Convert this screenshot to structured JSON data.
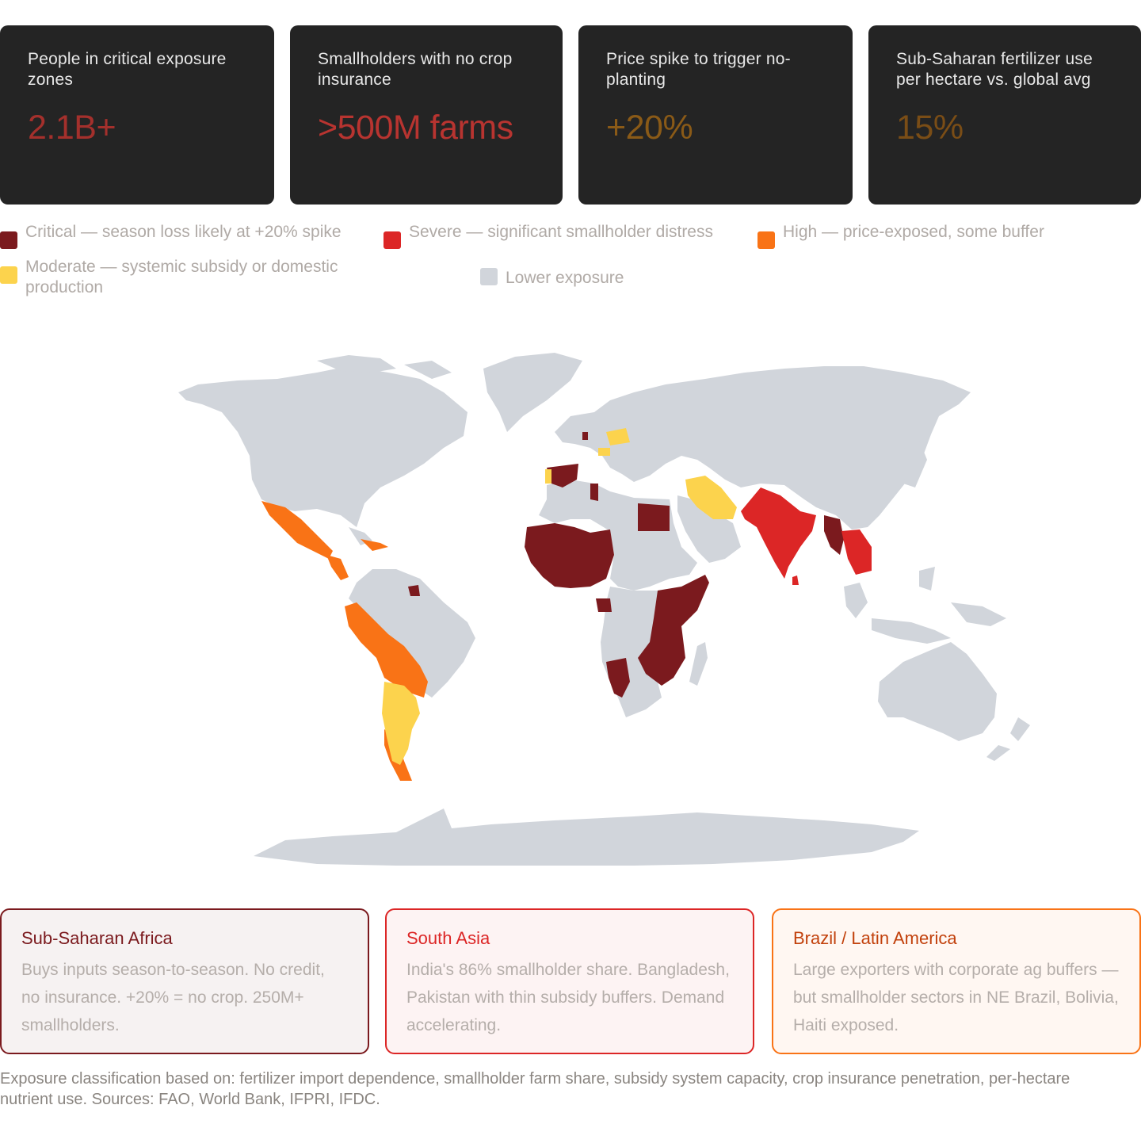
{
  "stats": [
    {
      "label": "People in critical exposure zones",
      "value": "2.1B+",
      "color": "#a4302c"
    },
    {
      "label": "Smallholders with no crop insurance",
      "value": ">500M farms",
      "color": "#b83430"
    },
    {
      "label": "Price spike to trigger no-planting",
      "value": "+20%",
      "color": "#8a5a17"
    },
    {
      "label": "Sub-Saharan fertilizer use per hectare vs. global avg",
      "value": "15%",
      "color": "#7a4d16"
    }
  ],
  "legend": [
    {
      "label": "Critical — season loss likely at +20% spike",
      "color": "#7b1a1e"
    },
    {
      "label": "Severe — significant smallholder distress",
      "color": "#dc2626"
    },
    {
      "label": "High — price-exposed, some buffer",
      "color": "#f97316"
    },
    {
      "label": "Moderate — systemic subsidy or domestic production",
      "color": "#fcd34d"
    },
    {
      "label": "Lower exposure",
      "color": "#d1d5db"
    }
  ],
  "regions": [
    {
      "title": "Sub-Saharan Africa",
      "body": "Buys inputs season-to-season. No credit, no insurance. +20% = no crop. 250M+ smallholders.",
      "title_color": "#7b1a1e",
      "border": "#7b1a1e",
      "bg": "#f6f2f2"
    },
    {
      "title": "South Asia",
      "body": "India's 86% smallholder share. Bangladesh, Pakistan with thin subsidy buffers. Demand accelerating.",
      "title_color": "#dc2626",
      "border": "#dc2626",
      "bg": "#fdf3f3"
    },
    {
      "title": "Brazil / Latin America",
      "body": "Large exporters with corporate ag buffers — but smallholder sectors in NE Brazil, Bolivia, Haiti exposed.",
      "title_color": "#c2410c",
      "border": "#f97316",
      "bg": "#fff7f2"
    }
  ],
  "footnote": "Exposure classification based on: fertilizer import dependence, smallholder farm share, subsidy system capacity, crop insurance penetration, per-hectare nutrient use. Sources: FAO, World Bank, IFPRI, IFDC.",
  "map_colors": {
    "critical": "#7b1a1e",
    "severe": "#dc2626",
    "high": "#f97316",
    "moderate": "#fcd34d",
    "lower": "#d1d5db"
  }
}
